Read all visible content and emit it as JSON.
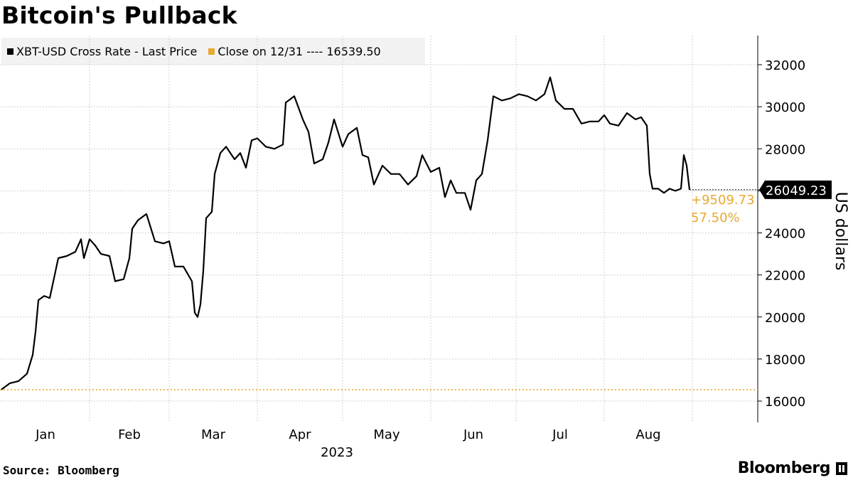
{
  "title": "Bitcoin's Pullback",
  "legend": {
    "series_label": "XBT-USD Cross Rate - Last Price",
    "ref_label": "Close on 12/31 ---- 16539.50"
  },
  "colors": {
    "series": "#000000",
    "reference": "#e8a832",
    "grid": "#d0d0d0",
    "legend_bg": "#f2f2f2"
  },
  "footer": {
    "source": "Source: Bloomberg",
    "brand": "Bloomberg"
  },
  "chart_data": {
    "type": "line",
    "title": "Bitcoin's Pullback",
    "ylabel": "US dollars",
    "xlabel": "2023",
    "ylim": [
      15000,
      33000
    ],
    "yticks": [
      16000,
      18000,
      20000,
      22000,
      24000,
      26000,
      28000,
      30000,
      32000
    ],
    "ytick_labels": [
      "16000",
      "18000",
      "20000",
      "22000",
      "24000",
      "26000",
      "28000",
      "30000",
      "32000"
    ],
    "xticks": [
      "Jan",
      "Feb",
      "Mar",
      "Apr",
      "May",
      "Jun",
      "Jul",
      "Aug"
    ],
    "grid": true,
    "legend_position": "top-left",
    "reference_line": {
      "name": "Close on 12/31",
      "value": 16539.5
    },
    "last_value_label": "26049.23",
    "change_label": "+9509.73",
    "change_pct_label": "57.50%",
    "series": [
      {
        "name": "XBT-USD Cross Rate - Last Price",
        "points": [
          [
            "2023-01-01",
            16550
          ],
          [
            "2023-01-04",
            16850
          ],
          [
            "2023-01-07",
            16950
          ],
          [
            "2023-01-10",
            17300
          ],
          [
            "2023-01-12",
            18200
          ],
          [
            "2023-01-13",
            19300
          ],
          [
            "2023-01-14",
            20800
          ],
          [
            "2023-01-16",
            21000
          ],
          [
            "2023-01-18",
            20900
          ],
          [
            "2023-01-21",
            22800
          ],
          [
            "2023-01-24",
            22900
          ],
          [
            "2023-01-27",
            23100
          ],
          [
            "2023-01-29",
            23700
          ],
          [
            "2023-01-30",
            22800
          ],
          [
            "2023-02-01",
            23700
          ],
          [
            "2023-02-03",
            23400
          ],
          [
            "2023-02-05",
            23000
          ],
          [
            "2023-02-08",
            22900
          ],
          [
            "2023-02-10",
            21700
          ],
          [
            "2023-02-13",
            21800
          ],
          [
            "2023-02-15",
            22800
          ],
          [
            "2023-02-16",
            24200
          ],
          [
            "2023-02-18",
            24600
          ],
          [
            "2023-02-21",
            24900
          ],
          [
            "2023-02-24",
            23600
          ],
          [
            "2023-02-27",
            23500
          ],
          [
            "2023-03-01",
            23600
          ],
          [
            "2023-03-03",
            22400
          ],
          [
            "2023-03-06",
            22400
          ],
          [
            "2023-03-09",
            21700
          ],
          [
            "2023-03-10",
            20200
          ],
          [
            "2023-03-11",
            20000
          ],
          [
            "2023-03-12",
            20600
          ],
          [
            "2023-03-13",
            22200
          ],
          [
            "2023-03-14",
            24700
          ],
          [
            "2023-03-16",
            25000
          ],
          [
            "2023-03-17",
            26800
          ],
          [
            "2023-03-19",
            27800
          ],
          [
            "2023-03-21",
            28100
          ],
          [
            "2023-03-24",
            27500
          ],
          [
            "2023-03-26",
            27800
          ],
          [
            "2023-03-28",
            27100
          ],
          [
            "2023-03-30",
            28400
          ],
          [
            "2023-04-01",
            28500
          ],
          [
            "2023-04-04",
            28100
          ],
          [
            "2023-04-07",
            28000
          ],
          [
            "2023-04-10",
            28200
          ],
          [
            "2023-04-11",
            30200
          ],
          [
            "2023-04-14",
            30500
          ],
          [
            "2023-04-17",
            29400
          ],
          [
            "2023-04-19",
            28800
          ],
          [
            "2023-04-21",
            27300
          ],
          [
            "2023-04-24",
            27500
          ],
          [
            "2023-04-26",
            28300
          ],
          [
            "2023-04-28",
            29400
          ],
          [
            "2023-05-01",
            28100
          ],
          [
            "2023-05-03",
            28700
          ],
          [
            "2023-05-06",
            29000
          ],
          [
            "2023-05-08",
            27700
          ],
          [
            "2023-05-10",
            27600
          ],
          [
            "2023-05-12",
            26300
          ],
          [
            "2023-05-15",
            27200
          ],
          [
            "2023-05-18",
            26800
          ],
          [
            "2023-05-21",
            26800
          ],
          [
            "2023-05-24",
            26300
          ],
          [
            "2023-05-27",
            26700
          ],
          [
            "2023-05-29",
            27700
          ],
          [
            "2023-06-01",
            26900
          ],
          [
            "2023-06-04",
            27100
          ],
          [
            "2023-06-06",
            25700
          ],
          [
            "2023-06-08",
            26500
          ],
          [
            "2023-06-10",
            25900
          ],
          [
            "2023-06-13",
            25900
          ],
          [
            "2023-06-15",
            25100
          ],
          [
            "2023-06-17",
            26500
          ],
          [
            "2023-06-19",
            26800
          ],
          [
            "2023-06-21",
            28400
          ],
          [
            "2023-06-23",
            30500
          ],
          [
            "2023-06-26",
            30300
          ],
          [
            "2023-06-29",
            30400
          ],
          [
            "2023-07-02",
            30600
          ],
          [
            "2023-07-05",
            30500
          ],
          [
            "2023-07-08",
            30300
          ],
          [
            "2023-07-11",
            30600
          ],
          [
            "2023-07-13",
            31400
          ],
          [
            "2023-07-15",
            30300
          ],
          [
            "2023-07-18",
            29900
          ],
          [
            "2023-07-21",
            29900
          ],
          [
            "2023-07-24",
            29200
          ],
          [
            "2023-07-27",
            29300
          ],
          [
            "2023-07-30",
            29300
          ],
          [
            "2023-08-01",
            29600
          ],
          [
            "2023-08-03",
            29200
          ],
          [
            "2023-08-06",
            29100
          ],
          [
            "2023-08-09",
            29700
          ],
          [
            "2023-08-12",
            29400
          ],
          [
            "2023-08-14",
            29500
          ],
          [
            "2023-08-16",
            29100
          ],
          [
            "2023-08-17",
            26800
          ],
          [
            "2023-08-18",
            26100
          ],
          [
            "2023-08-20",
            26100
          ],
          [
            "2023-08-22",
            25900
          ],
          [
            "2023-08-24",
            26100
          ],
          [
            "2023-08-26",
            26000
          ],
          [
            "2023-08-28",
            26100
          ],
          [
            "2023-08-29",
            27700
          ],
          [
            "2023-08-30",
            27200
          ],
          [
            "2023-08-31",
            26049.23
          ]
        ]
      }
    ]
  }
}
